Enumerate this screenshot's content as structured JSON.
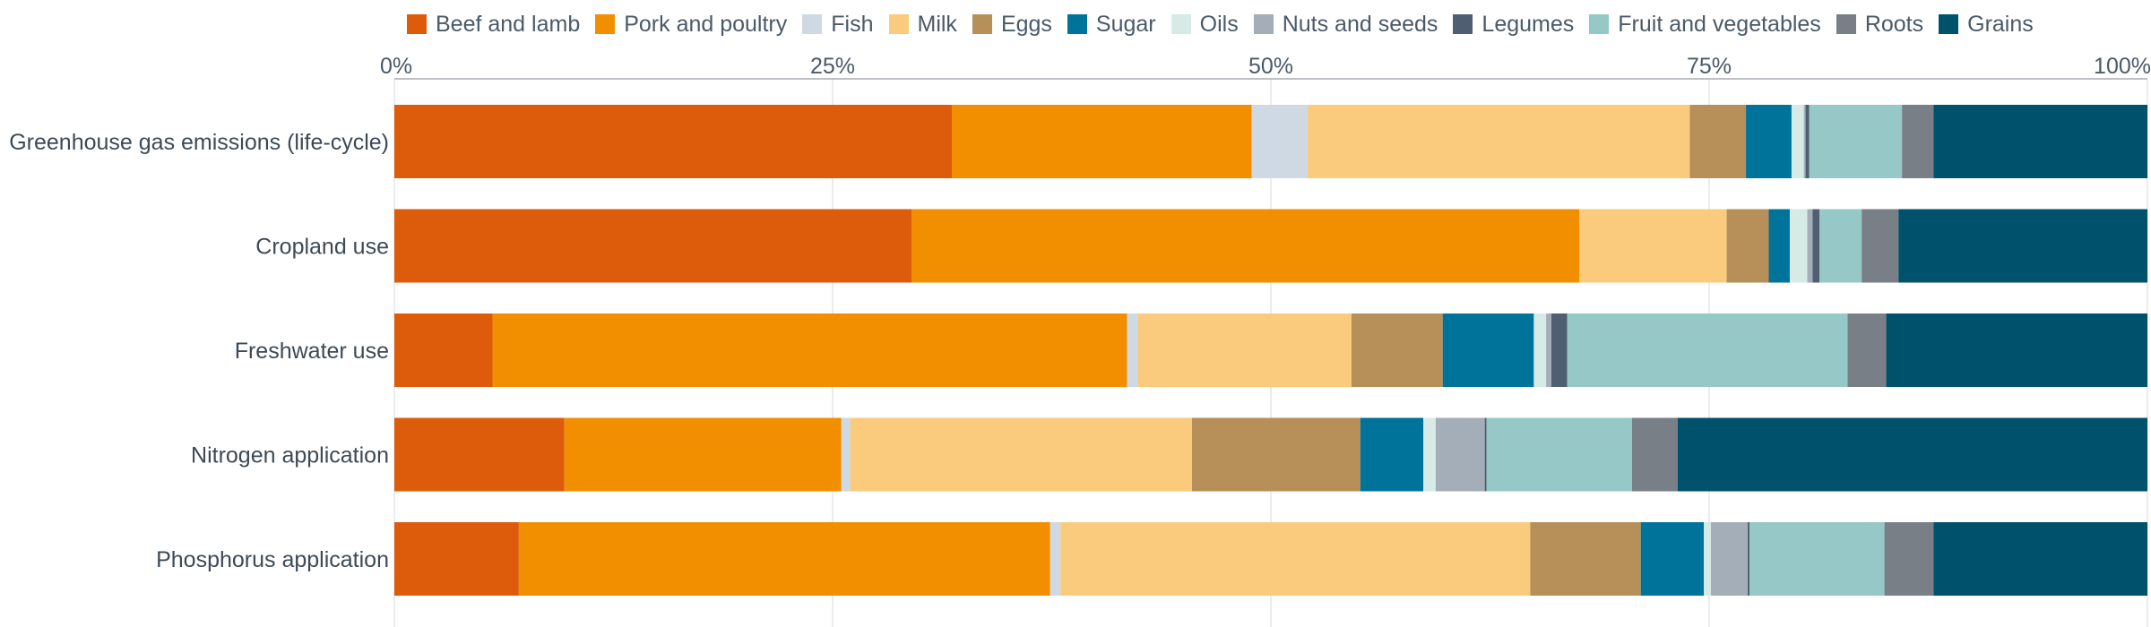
{
  "chart_data": {
    "type": "bar",
    "orientation": "horizontal",
    "stacked": true,
    "normalized": true,
    "categories": [
      "Greenhouse gas emissions (life-cycle)",
      "Cropland use",
      "Freshwater use",
      "Nitrogen application",
      "Phosphorus application"
    ],
    "series": [
      {
        "name": "Beef and lamb",
        "color": "#dd5c0c",
        "values": [
          31.8,
          29.5,
          5.6,
          9.7,
          7.1
        ]
      },
      {
        "name": "Pork and poultry",
        "color": "#f28f00",
        "values": [
          17.1,
          38.1,
          36.2,
          15.8,
          30.3
        ]
      },
      {
        "name": "Fish",
        "color": "#cfd9e3",
        "values": [
          3.2,
          0.0,
          0.6,
          0.5,
          0.6
        ]
      },
      {
        "name": "Milk",
        "color": "#facb7c",
        "values": [
          21.8,
          8.4,
          12.2,
          19.5,
          26.8
        ]
      },
      {
        "name": "Eggs",
        "color": "#b68f59",
        "values": [
          3.2,
          2.4,
          5.2,
          9.6,
          6.3
        ]
      },
      {
        "name": "Sugar",
        "color": "#00739a",
        "values": [
          2.6,
          1.2,
          5.2,
          3.6,
          3.6
        ]
      },
      {
        "name": "Oils",
        "color": "#d6ebe6",
        "values": [
          0.7,
          1.0,
          0.7,
          0.7,
          0.4
        ]
      },
      {
        "name": "Nuts and seeds",
        "color": "#a3aeb8",
        "values": [
          0.1,
          0.3,
          0.3,
          2.8,
          2.1
        ]
      },
      {
        "name": "Legumes",
        "color": "#4f5f71",
        "values": [
          0.2,
          0.4,
          0.9,
          0.1,
          0.1
        ]
      },
      {
        "name": "Fruit and vegetables",
        "color": "#95c8c6",
        "values": [
          5.3,
          2.4,
          16.0,
          8.3,
          7.7
        ]
      },
      {
        "name": "Roots",
        "color": "#787f87",
        "values": [
          1.8,
          2.1,
          2.2,
          2.6,
          2.8
        ]
      },
      {
        "name": "Grains",
        "color": "#00516c",
        "values": [
          12.2,
          14.2,
          14.9,
          26.8,
          12.2
        ]
      }
    ],
    "x_ticks": [
      "0%",
      "25%",
      "50%",
      "75%",
      "100%"
    ],
    "xlim": [
      0,
      100
    ],
    "title": "",
    "xlabel": "",
    "ylabel": "",
    "grid": true,
    "legend_position": "top"
  }
}
